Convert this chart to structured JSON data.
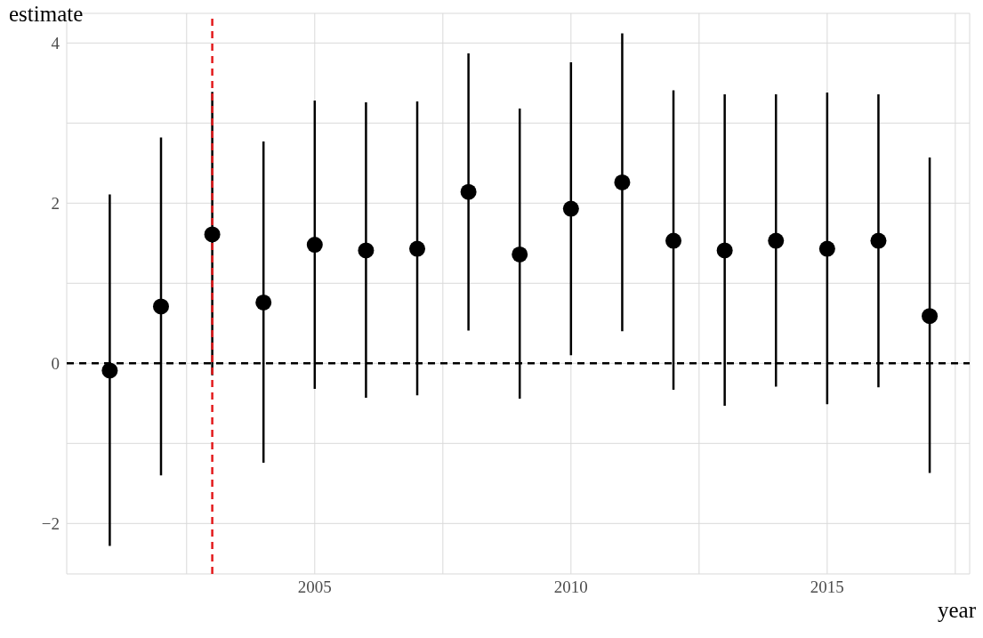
{
  "chart_data": {
    "type": "scatter",
    "xlabel": "year",
    "ylabel": "estimate",
    "x": [
      2001,
      2002,
      2003,
      2004,
      2005,
      2006,
      2007,
      2008,
      2009,
      2010,
      2011,
      2012,
      2013,
      2014,
      2015,
      2016,
      2017
    ],
    "series": [
      {
        "color": "#000000",
        "values": [
          -0.09,
          0.71,
          1.61,
          0.76,
          1.48,
          1.41,
          1.43,
          2.14,
          1.36,
          1.93,
          2.26,
          1.53,
          1.41,
          1.53,
          1.43,
          1.53,
          0.59
        ],
        "errors": [
          [
            -2.28,
            2.11
          ],
          [
            -1.4,
            2.82
          ],
          [
            -0.15,
            3.39
          ],
          [
            -1.24,
            2.77
          ],
          [
            -0.32,
            3.28
          ],
          [
            -0.43,
            3.26
          ],
          [
            -0.4,
            3.27
          ],
          [
            0.41,
            3.87
          ],
          [
            -0.44,
            3.18
          ],
          [
            0.1,
            3.76
          ],
          [
            0.4,
            4.12
          ],
          [
            -0.33,
            3.41
          ],
          [
            -0.53,
            3.36
          ],
          [
            -0.29,
            3.36
          ],
          [
            -0.51,
            3.38
          ],
          [
            -0.3,
            3.36
          ],
          [
            -1.37,
            2.57
          ]
        ]
      }
    ],
    "xlim": [
      2000.16,
      2017.78
    ],
    "ylim": [
      -2.63,
      4.37
    ],
    "xticks": [
      {
        "value": 2002.5,
        "label": null
      },
      2005,
      {
        "value": 2007.5,
        "label": null
      },
      2010,
      {
        "value": 2012.5,
        "label": null
      },
      2015,
      {
        "value": 2017.5,
        "label": null
      }
    ],
    "yticks": [
      -2,
      {
        "value": -1,
        "label": null
      },
      0,
      {
        "value": 1,
        "label": null
      },
      2,
      {
        "value": 3,
        "label": null
      },
      4
    ],
    "ref_lines": [
      {
        "axis": "y",
        "value": 0,
        "color": "#000000",
        "line_style": "dashed"
      },
      {
        "axis": "x",
        "value": 2003,
        "color": "#e31a1c",
        "line_style": "dashed"
      }
    ],
    "grid": true,
    "marker": "circle"
  }
}
